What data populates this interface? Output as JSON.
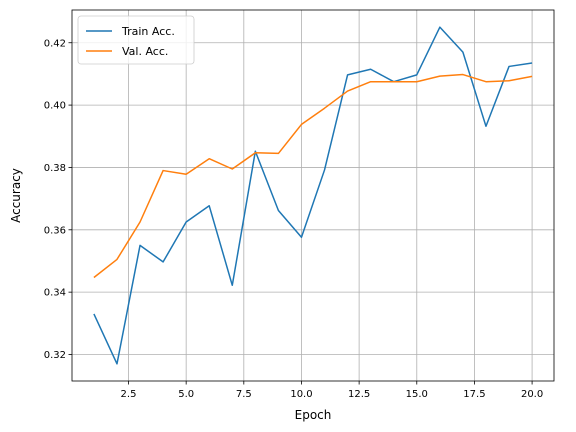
{
  "chart_data": {
    "type": "line",
    "title": "",
    "xlabel": "Epoch",
    "ylabel": "Accuracy",
    "xlim": [
      0.05,
      20.95
    ],
    "ylim": [
      0.3115,
      0.4305
    ],
    "xticks": [
      2.5,
      5.0,
      7.5,
      10.0,
      12.5,
      15.0,
      17.5,
      20.0
    ],
    "xtick_labels": [
      "2.5",
      "5.0",
      "7.5",
      "10.0",
      "12.5",
      "15.0",
      "17.5",
      "20.0"
    ],
    "yticks": [
      0.32,
      0.34,
      0.36,
      0.38,
      0.4,
      0.42
    ],
    "ytick_labels": [
      "0.32",
      "0.34",
      "0.36",
      "0.38",
      "0.40",
      "0.42"
    ],
    "grid": true,
    "legend": "top-left",
    "x": [
      1,
      2,
      3,
      4,
      5,
      6,
      7,
      8,
      9,
      10,
      11,
      12,
      13,
      14,
      15,
      16,
      17,
      18,
      19,
      20
    ],
    "series": [
      {
        "name": "Train Acc.",
        "color": "#1f77b4",
        "values": [
          0.333,
          0.317,
          0.355,
          0.3497,
          0.3625,
          0.3677,
          0.3422,
          0.3852,
          0.3662,
          0.3576,
          0.3792,
          0.4097,
          0.4115,
          0.4075,
          0.4097,
          0.425,
          0.417,
          0.3932,
          0.4124,
          0.4135
        ]
      },
      {
        "name": "Val. Acc.",
        "color": "#ff7f0e",
        "values": [
          0.3447,
          0.3505,
          0.3625,
          0.379,
          0.3778,
          0.3828,
          0.3795,
          0.3847,
          0.3845,
          0.3938,
          0.399,
          0.4045,
          0.4075,
          0.4075,
          0.4075,
          0.4093,
          0.4098,
          0.4075,
          0.4078,
          0.4092
        ]
      }
    ]
  }
}
